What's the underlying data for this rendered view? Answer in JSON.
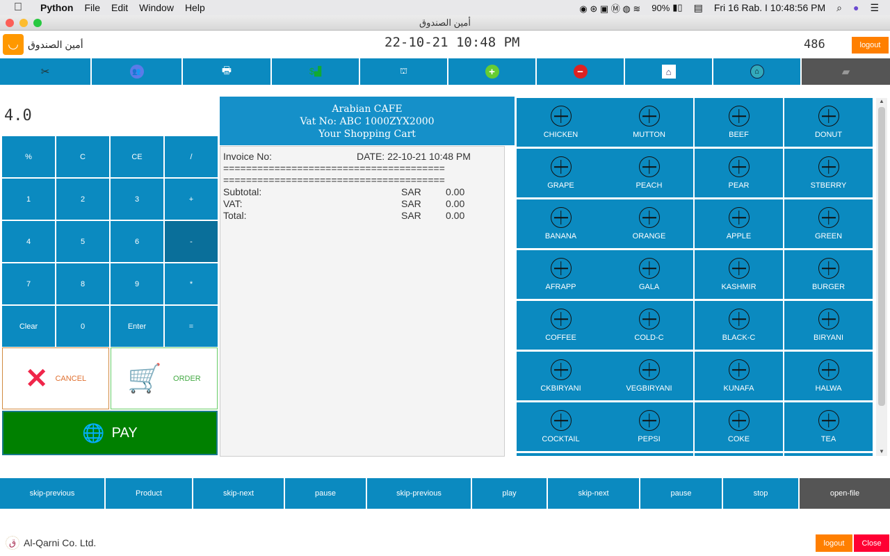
{
  "menubar": {
    "app": "Python",
    "items": [
      "File",
      "Edit",
      "Window",
      "Help"
    ],
    "battery": "90%",
    "datetime": "Fri 16 Rab. I  10:48:56 PM"
  },
  "window": {
    "title": "أمين الصندوق"
  },
  "header": {
    "app_name": "أمين الصندوق",
    "datetime": "22-10-21  10:48 PM",
    "counter": "486",
    "logout": "logout"
  },
  "nav": [
    {
      "icon": "tools-icon"
    },
    {
      "icon": "users-icon"
    },
    {
      "icon": "printer-icon"
    },
    {
      "icon": "sales-chart-icon"
    },
    {
      "icon": "warehouse-icon"
    },
    {
      "icon": "add-icon"
    },
    {
      "icon": "remove-icon"
    },
    {
      "icon": "store-icon"
    },
    {
      "icon": "home-icon"
    },
    {
      "icon": "folder-icon"
    }
  ],
  "calculator": {
    "display": "4.0",
    "keys": [
      [
        "%",
        "C",
        "CE",
        "/"
      ],
      [
        "1",
        "2",
        "3",
        "+"
      ],
      [
        "4",
        "5",
        "6",
        "-"
      ],
      [
        "7",
        "8",
        "9",
        "*"
      ],
      [
        "Clear",
        "0",
        "Enter",
        "="
      ]
    ]
  },
  "actions": {
    "cancel": "CANCEL",
    "order": "ORDER",
    "pay": "PAY"
  },
  "cart": {
    "shop": "Arabian CAFE",
    "vat_no": "Vat No: ABC 1000ZYX2000",
    "title": "Your Shopping Cart",
    "invoice_label": "Invoice No:",
    "date": "DATE: 22-10-21  10:48 PM",
    "separator": "=======================================",
    "totals": [
      {
        "label": "Subtotal:",
        "currency": "SAR",
        "value": "0.00"
      },
      {
        "label": "VAT:",
        "currency": "SAR",
        "value": "0.00"
      },
      {
        "label": "Total:",
        "currency": "SAR",
        "value": "0.00"
      }
    ]
  },
  "products": [
    "CHICKEN",
    "MUTTON",
    "BEEF",
    "DONUT",
    "GRAPE",
    "PEACH",
    "PEAR",
    "STBERRY",
    "BANANA",
    "ORANGE",
    "APPLE",
    "GREEN",
    "AFRAPP",
    "GALA",
    "KASHMIR",
    "BURGER",
    "COFFEE",
    "COLD-C",
    "BLACK-C",
    "BIRYANI",
    "CKBIRYANI",
    "VEGBIRYANI",
    "KUNAFA",
    "HALWA",
    "COCKTAIL",
    "PEPSI",
    "COKE",
    "TEA"
  ],
  "bottom_bar": [
    "skip-previous",
    "Product",
    "skip-next",
    "pause",
    "skip-previous",
    "play",
    "skip-next",
    "pause",
    "stop",
    "open-file"
  ],
  "footer": {
    "company": "Al-Qarni Co. Ltd.",
    "logout": "logout",
    "close": "Close"
  },
  "colors": {
    "primary": "#0b8ac0",
    "pay": "#008000",
    "logout": "#ff7f00",
    "close": "#ff0033",
    "dark": "#555555"
  }
}
